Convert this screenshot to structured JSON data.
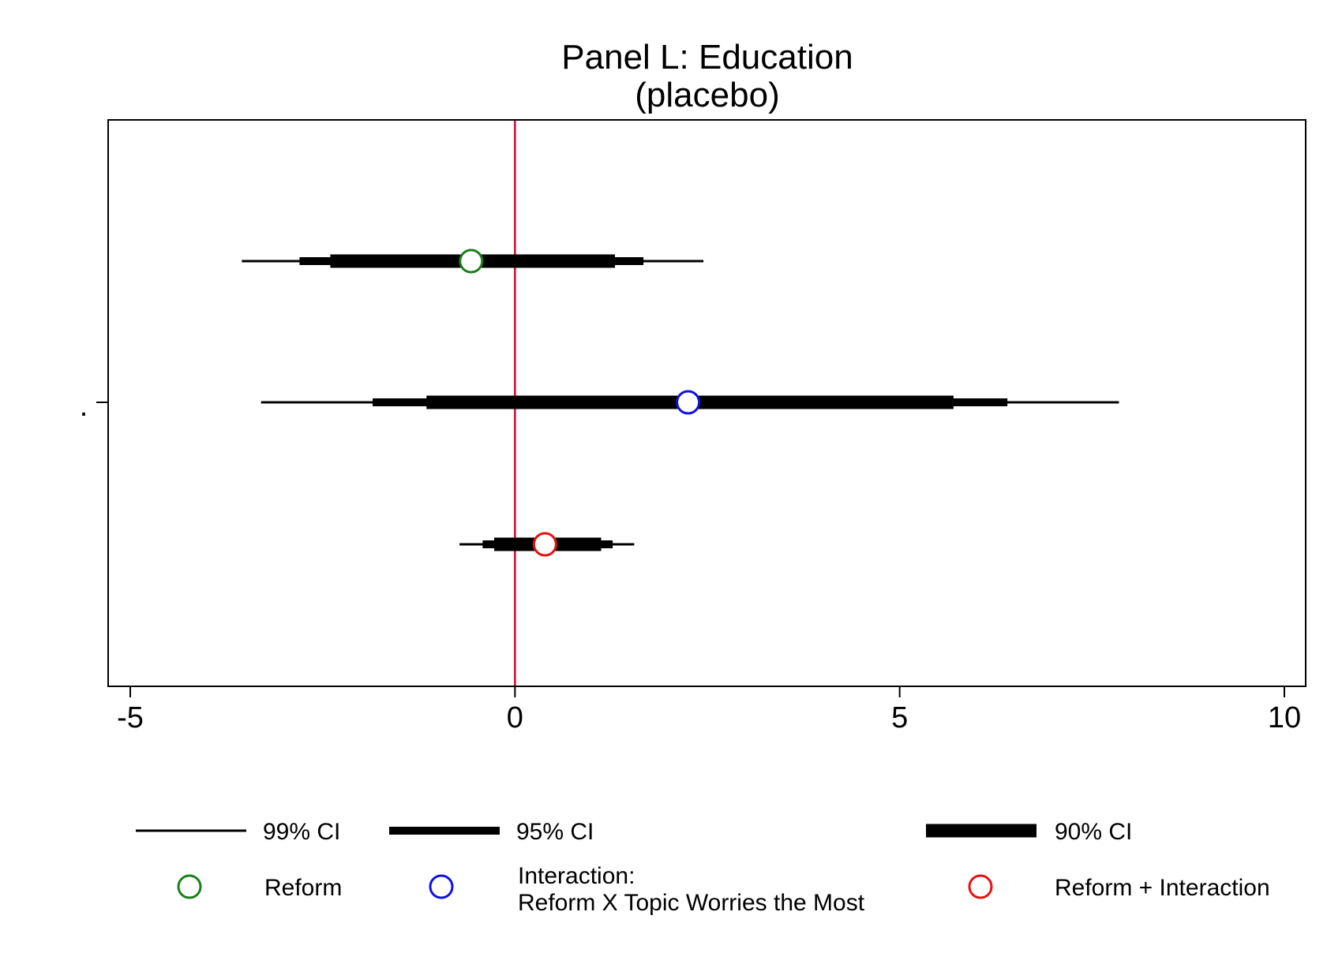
{
  "chart_data": {
    "type": "coefficient-plot",
    "title": "Panel L: Education",
    "subtitle": "(placebo)",
    "y_tick_label": ".",
    "xlim": [
      -5.3,
      10.3
    ],
    "x_ticks": [
      -5,
      0,
      5,
      10
    ],
    "x_tick_labels": [
      "-5",
      "0",
      "5",
      "10"
    ],
    "reference_line": {
      "x": 0,
      "color": "#c8102e"
    },
    "series": [
      {
        "name": "Reform",
        "estimate": -0.57,
        "ci99": [
          -3.55,
          2.45
        ],
        "ci95": [
          -2.8,
          1.67
        ],
        "ci90": [
          -2.4,
          1.3
        ],
        "color": "#1a7f1a"
      },
      {
        "name": "Interaction: Reform X Topic Worries the Most",
        "estimate": 2.25,
        "ci99": [
          -3.3,
          7.85
        ],
        "ci95": [
          -1.85,
          6.4
        ],
        "ci90": [
          -1.15,
          5.7
        ],
        "color": "#1010e0"
      },
      {
        "name": "Reform + Interaction",
        "estimate": 0.39,
        "ci99": [
          -0.72,
          1.55
        ],
        "ci95": [
          -0.42,
          1.27
        ],
        "ci90": [
          -0.27,
          1.12
        ],
        "color": "#e81010"
      }
    ],
    "legend": {
      "placement": "bottom",
      "ci_items": [
        {
          "label": "99% CI",
          "weight": 3
        },
        {
          "label": "95% CI",
          "weight": 10
        },
        {
          "label": "90% CI",
          "weight": 17
        }
      ],
      "marker_items": [
        {
          "label_lines": [
            "Reform"
          ],
          "color": "#1a7f1a"
        },
        {
          "label_lines": [
            "Interaction:",
            "Reform X Topic Worries the Most"
          ],
          "color": "#1010e0"
        },
        {
          "label_lines": [
            "Reform + Interaction"
          ],
          "color": "#e81010"
        }
      ]
    }
  }
}
